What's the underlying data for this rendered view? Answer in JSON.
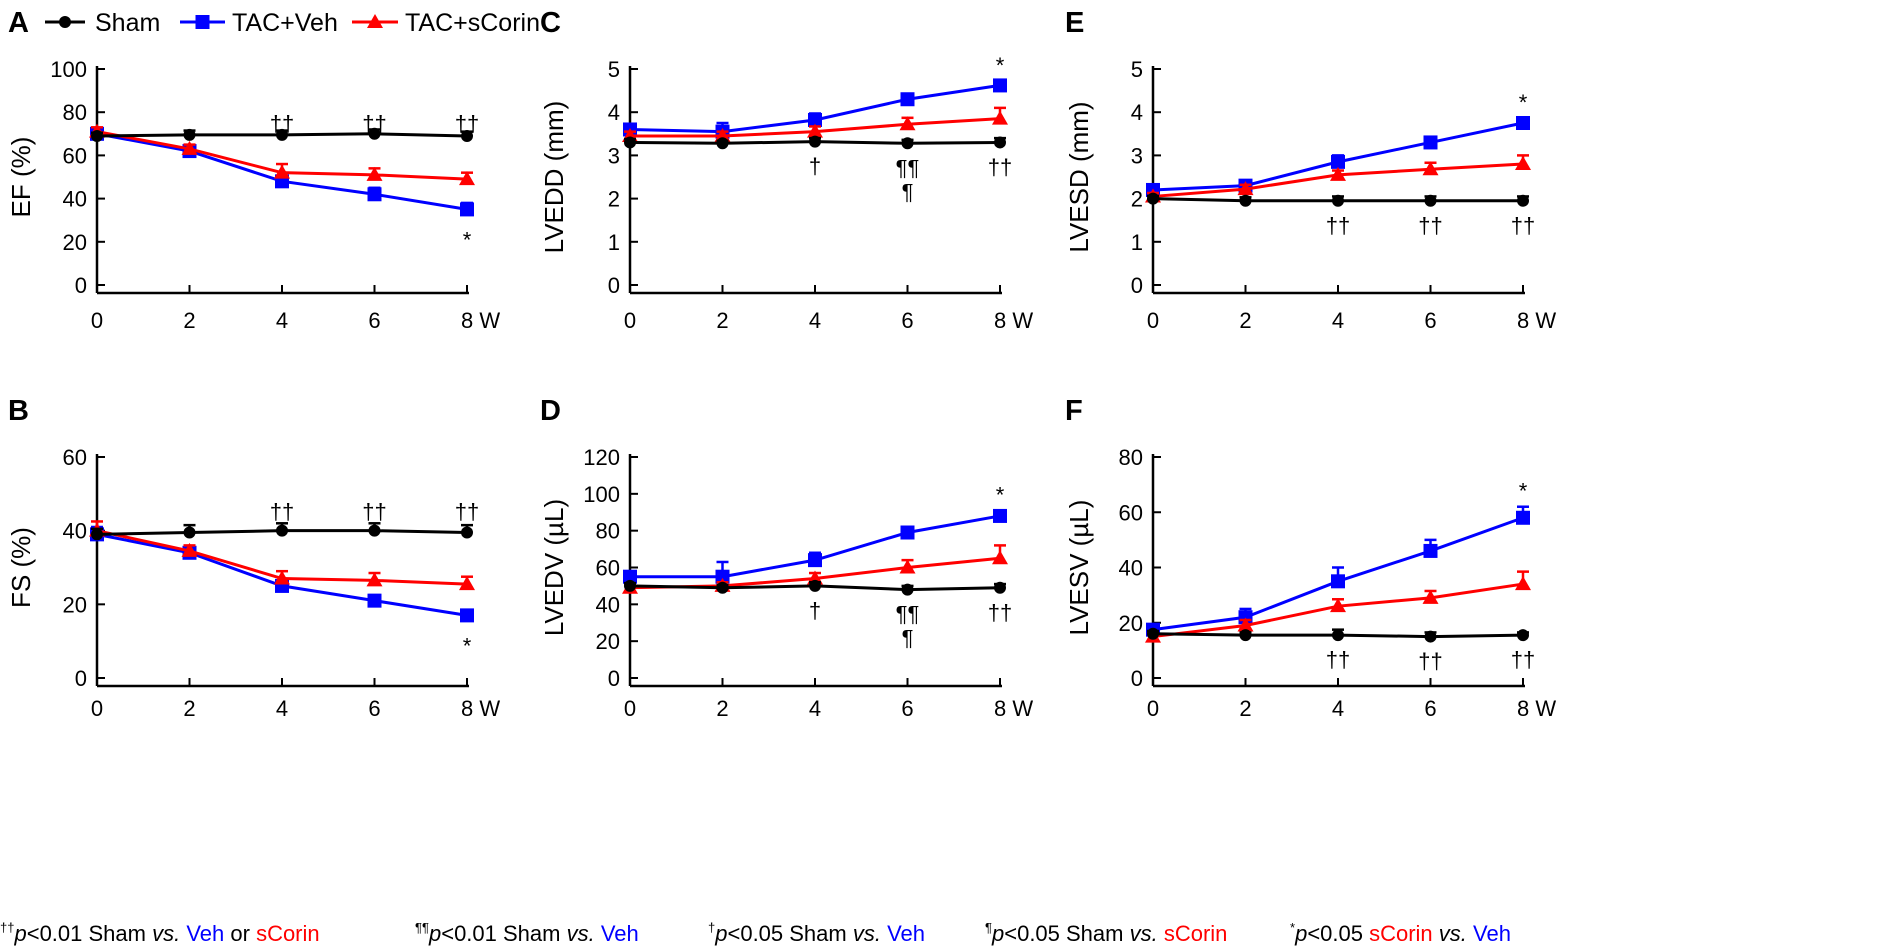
{
  "legend": [
    {
      "name": "Sham",
      "color": "#000000",
      "marker": "circle"
    },
    {
      "name": "TAC+Veh",
      "color": "#0000ff",
      "marker": "square"
    },
    {
      "name": "TAC+sCorin",
      "color": "#ff0000",
      "marker": "triangle"
    }
  ],
  "chart_data": [
    {
      "panel": "A",
      "type": "line",
      "ylabel": "EF (%)",
      "ylim": [
        0,
        100
      ],
      "yticks": [
        "0",
        "20",
        "40",
        "60",
        "80",
        "100"
      ],
      "x": [
        0,
        2,
        4,
        6,
        8
      ],
      "xticks": [
        "0",
        "2",
        "4",
        "6",
        "8 W"
      ],
      "series": [
        {
          "name": "Sham",
          "values": [
            69,
            69.5,
            69.5,
            70,
            69
          ],
          "err": [
            1.5,
            2,
            2,
            2,
            2
          ]
        },
        {
          "name": "TAC+Veh",
          "values": [
            70,
            62,
            48,
            42,
            35
          ],
          "err": [
            2,
            2,
            2,
            3,
            3
          ]
        },
        {
          "name": "TAC+sCorin",
          "values": [
            71,
            63,
            52,
            51,
            49
          ],
          "err": [
            2,
            2,
            4,
            3,
            3
          ]
        }
      ],
      "annotations": [
        {
          "x": 4,
          "text": "††",
          "position": "above"
        },
        {
          "x": 6,
          "text": "††",
          "position": "above"
        },
        {
          "x": 8,
          "text": "††",
          "position": "above"
        },
        {
          "x": 8,
          "text": "*",
          "position": "below"
        }
      ]
    },
    {
      "panel": "B",
      "type": "line",
      "ylabel": "FS (%)",
      "ylim": [
        0,
        60
      ],
      "yticks": [
        "0",
        "20",
        "40",
        "60"
      ],
      "x": [
        0,
        2,
        4,
        6,
        8
      ],
      "xticks": [
        "0",
        "2",
        "4",
        "6",
        "8 W"
      ],
      "series": [
        {
          "name": "Sham",
          "values": [
            39,
            39.5,
            40,
            40,
            39.5
          ],
          "err": [
            1.5,
            2,
            2,
            2,
            2
          ]
        },
        {
          "name": "TAC+Veh",
          "values": [
            39,
            34,
            25,
            21,
            17
          ],
          "err": [
            2,
            1.5,
            1.5,
            1.5,
            1.5
          ]
        },
        {
          "name": "TAC+sCorin",
          "values": [
            40,
            34.5,
            27,
            26.5,
            25.5
          ],
          "err": [
            2.5,
            1.5,
            2,
            2,
            2
          ]
        }
      ],
      "annotations": [
        {
          "x": 4,
          "text": "††",
          "position": "above"
        },
        {
          "x": 6,
          "text": "††",
          "position": "above"
        },
        {
          "x": 8,
          "text": "††",
          "position": "above"
        },
        {
          "x": 8,
          "text": "*",
          "position": "below"
        }
      ]
    },
    {
      "panel": "C",
      "type": "line",
      "ylabel": "LVEDD (mm)",
      "ylim": [
        0,
        5
      ],
      "yticks": [
        "0",
        "1",
        "2",
        "3",
        "4",
        "5"
      ],
      "x": [
        0,
        2,
        4,
        6,
        8
      ],
      "xticks": [
        "0",
        "2",
        "4",
        "6",
        "8 W"
      ],
      "series": [
        {
          "name": "Sham",
          "values": [
            3.3,
            3.28,
            3.32,
            3.28,
            3.3
          ],
          "err": [
            0.08,
            0.06,
            0.08,
            0.08,
            0.1
          ]
        },
        {
          "name": "TAC+Veh",
          "values": [
            3.6,
            3.55,
            3.82,
            4.3,
            4.62
          ],
          "err": [
            0.08,
            0.2,
            0.15,
            0.1,
            0.1
          ]
        },
        {
          "name": "TAC+sCorin",
          "values": [
            3.45,
            3.45,
            3.55,
            3.72,
            3.85
          ],
          "err": [
            0.1,
            0.1,
            0.12,
            0.15,
            0.25
          ]
        }
      ],
      "annotations": [
        {
          "x": 8,
          "text": "*",
          "position": "above"
        },
        {
          "x": 4,
          "text": "†",
          "position": "below"
        },
        {
          "x": 6,
          "text": "¶¶",
          "position": "below"
        },
        {
          "x": 6,
          "text": "¶",
          "position": "below2"
        },
        {
          "x": 8,
          "text": "††",
          "position": "below"
        }
      ]
    },
    {
      "panel": "D",
      "type": "line",
      "ylabel": "LVEDV (µL)",
      "ylim": [
        0,
        120
      ],
      "yticks": [
        "0",
        "20",
        "40",
        "60",
        "80",
        "100",
        "120"
      ],
      "x": [
        0,
        2,
        4,
        6,
        8
      ],
      "xticks": [
        "0",
        "2",
        "4",
        "6",
        "8 W"
      ],
      "series": [
        {
          "name": "Sham",
          "values": [
            50,
            49,
            50,
            48,
            49
          ],
          "err": [
            1.5,
            1.5,
            2,
            2,
            2
          ]
        },
        {
          "name": "TAC+Veh",
          "values": [
            55,
            55,
            64,
            79,
            88
          ],
          "err": [
            2,
            8,
            4,
            3,
            3
          ]
        },
        {
          "name": "TAC+sCorin",
          "values": [
            49,
            50,
            54,
            60,
            65
          ],
          "err": [
            2,
            2,
            3,
            4,
            7
          ]
        }
      ],
      "annotations": [
        {
          "x": 8,
          "text": "*",
          "position": "above"
        },
        {
          "x": 4,
          "text": "†",
          "position": "below"
        },
        {
          "x": 6,
          "text": "¶¶",
          "position": "below"
        },
        {
          "x": 6,
          "text": "¶",
          "position": "below2"
        },
        {
          "x": 8,
          "text": "††",
          "position": "below"
        }
      ]
    },
    {
      "panel": "E",
      "type": "line",
      "ylabel": "LVESD (mm)",
      "ylim": [
        0,
        5
      ],
      "yticks": [
        "0",
        "1",
        "2",
        "3",
        "4",
        "5"
      ],
      "x": [
        0,
        2,
        4,
        6,
        8
      ],
      "xticks": [
        "0",
        "2",
        "4",
        "6",
        "8 W"
      ],
      "series": [
        {
          "name": "Sham",
          "values": [
            2.0,
            1.95,
            1.95,
            1.95,
            1.95
          ],
          "err": [
            0.06,
            0.08,
            0.1,
            0.1,
            0.1
          ]
        },
        {
          "name": "TAC+Veh",
          "values": [
            2.2,
            2.3,
            2.85,
            3.3,
            3.75
          ],
          "err": [
            0.08,
            0.12,
            0.15,
            0.12,
            0.12
          ]
        },
        {
          "name": "TAC+sCorin",
          "values": [
            2.05,
            2.22,
            2.55,
            2.68,
            2.8
          ],
          "err": [
            0.08,
            0.1,
            0.1,
            0.15,
            0.2
          ]
        }
      ],
      "annotations": [
        {
          "x": 8,
          "text": "*",
          "position": "above"
        },
        {
          "x": 4,
          "text": "††",
          "position": "below"
        },
        {
          "x": 6,
          "text": "††",
          "position": "below"
        },
        {
          "x": 8,
          "text": "††",
          "position": "below"
        }
      ]
    },
    {
      "panel": "F",
      "type": "line",
      "ylabel": "LVESV (µL)",
      "ylim": [
        0,
        80
      ],
      "yticks": [
        "0",
        "20",
        "40",
        "60",
        "80"
      ],
      "x": [
        0,
        2,
        4,
        6,
        8
      ],
      "xticks": [
        "0",
        "2",
        "4",
        "6",
        "8 W"
      ],
      "series": [
        {
          "name": "Sham",
          "values": [
            16,
            15.5,
            15.5,
            15,
            15.5
          ],
          "err": [
            1,
            1,
            2,
            1.5,
            1
          ]
        },
        {
          "name": "TAC+Veh",
          "values": [
            17.5,
            22,
            35,
            46,
            58
          ],
          "err": [
            1.5,
            3,
            5,
            4,
            4
          ]
        },
        {
          "name": "TAC+sCorin",
          "values": [
            15,
            19,
            26,
            29,
            34
          ],
          "err": [
            1.5,
            2,
            2.5,
            2.5,
            4.5
          ]
        }
      ],
      "annotations": [
        {
          "x": 8,
          "text": "*",
          "position": "above"
        },
        {
          "x": 4,
          "text": "††",
          "position": "below"
        },
        {
          "x": 6,
          "text": "††",
          "position": "below"
        },
        {
          "x": 8,
          "text": "††",
          "position": "below"
        }
      ]
    }
  ],
  "footnote": [
    [
      {
        "t": "††",
        "s": "sup"
      },
      {
        "t": "p",
        "s": "it"
      },
      {
        "t": "<0.01 Sham "
      },
      {
        "t": "vs.",
        "s": "it"
      },
      {
        "t": " Veh",
        "c": "#0000ff"
      },
      {
        "t": " or "
      },
      {
        "t": "sCorin",
        "c": "#ff0000"
      }
    ],
    [
      {
        "t": "¶¶",
        "s": "sup"
      },
      {
        "t": "p",
        "s": "it"
      },
      {
        "t": "<0.01 Sham "
      },
      {
        "t": "vs.",
        "s": "it"
      },
      {
        "t": " Veh",
        "c": "#0000ff"
      }
    ],
    [
      {
        "t": "†",
        "s": "sup"
      },
      {
        "t": "p",
        "s": "it"
      },
      {
        "t": "<0.05 Sham "
      },
      {
        "t": "vs.",
        "s": "it"
      },
      {
        "t": " Veh",
        "c": "#0000ff"
      }
    ],
    [
      {
        "t": "¶",
        "s": "sup"
      },
      {
        "t": "p",
        "s": "it"
      },
      {
        "t": "<0.05 Sham "
      },
      {
        "t": "vs.",
        "s": "it"
      },
      {
        "t": " sCorin",
        "c": "#ff0000"
      }
    ],
    [
      {
        "t": "*",
        "s": "sup"
      },
      {
        "t": "p",
        "s": "it"
      },
      {
        "t": "<0.05 "
      },
      {
        "t": "sCorin",
        "c": "#ff0000"
      },
      {
        "t": " "
      },
      {
        "t": "vs.",
        "s": "it"
      },
      {
        "t": " Veh",
        "c": "#0000ff"
      }
    ]
  ]
}
